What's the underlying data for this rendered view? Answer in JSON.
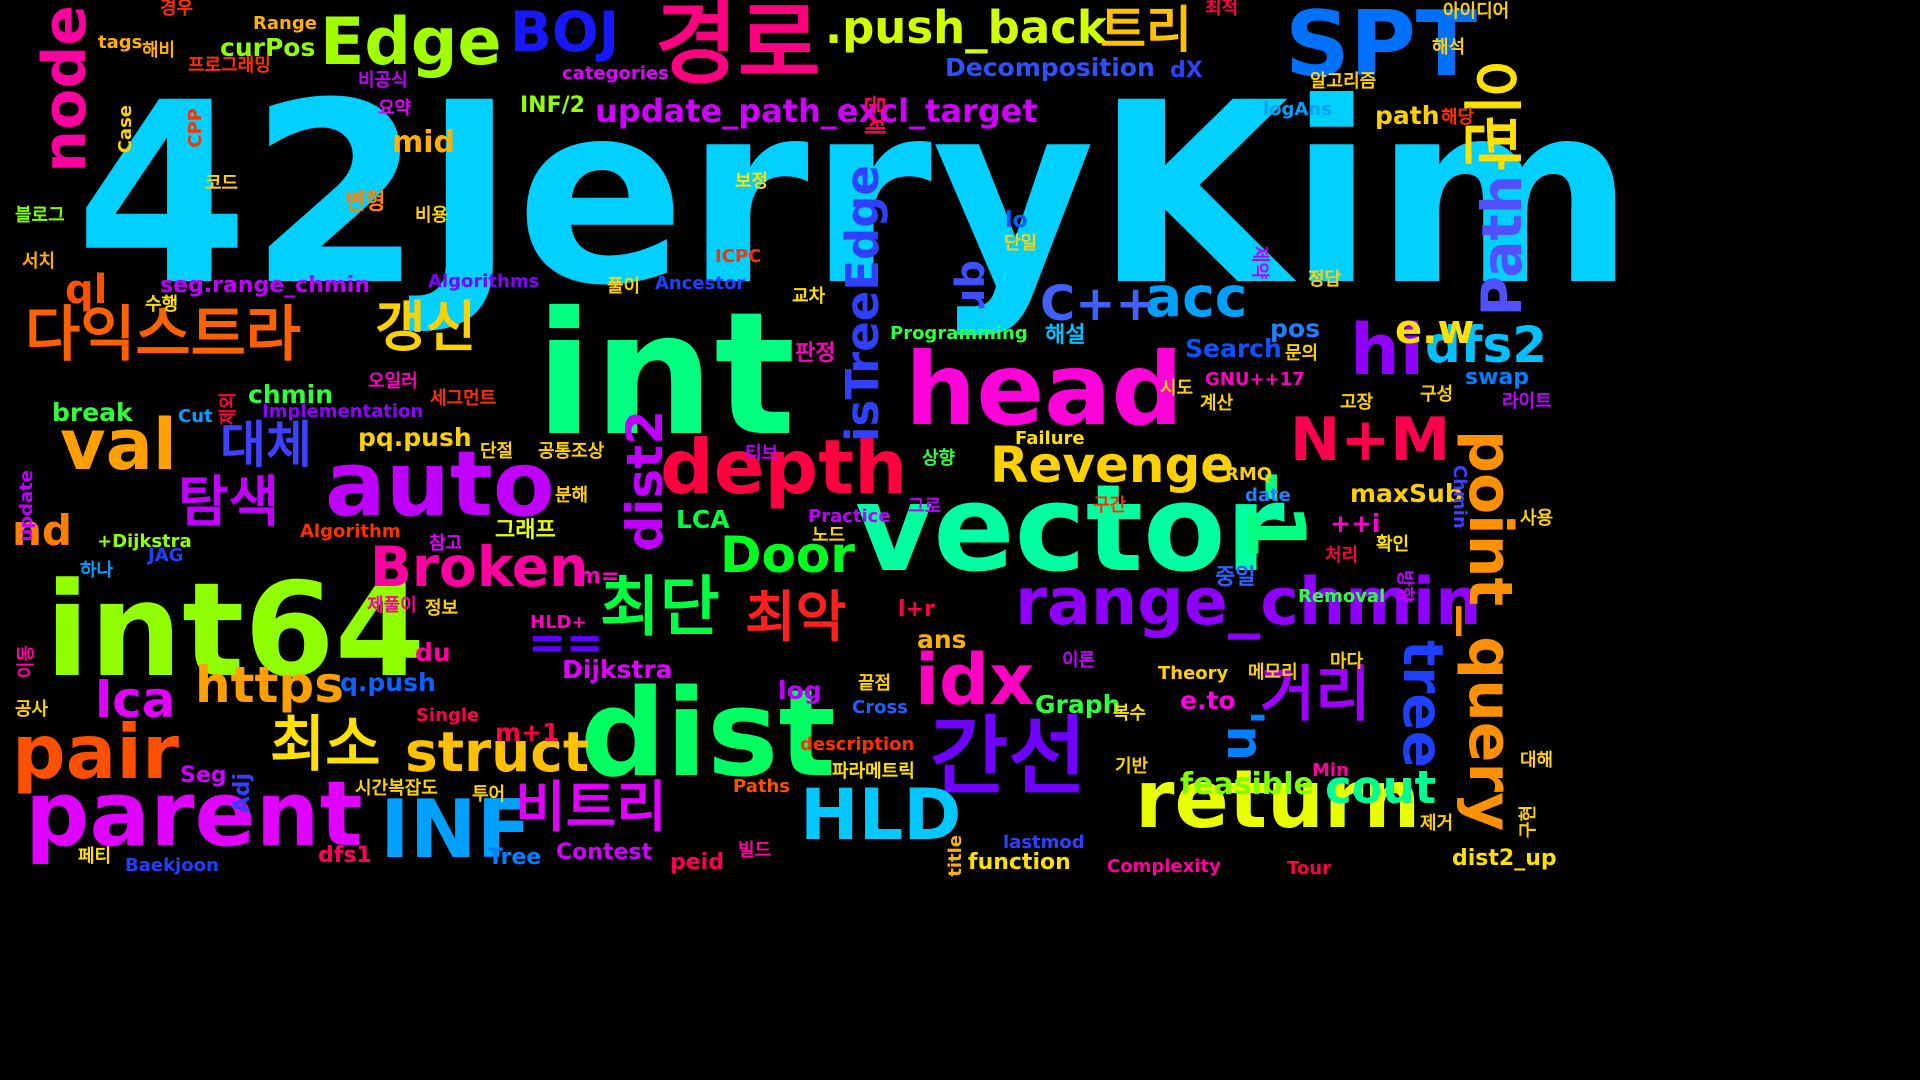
{
  "words": [
    {
      "text": "42JerryKim",
      "color": "#00d0ff"
    },
    {
      "text": "int",
      "color": "#00ff80"
    },
    {
      "text": "vector",
      "color": "#00ffa0"
    },
    {
      "text": "int64",
      "color": "#90ff00"
    },
    {
      "text": "dist",
      "color": "#00ff60"
    },
    {
      "text": "head",
      "color": "#ff00d8"
    },
    {
      "text": "auto",
      "color": "#c000ff"
    },
    {
      "text": "parent",
      "color": "#e000ff"
    },
    {
      "text": "경로",
      "color": "#ff0080"
    },
    {
      "text": "SPT",
      "color": "#0070ff"
    },
    {
      "text": "INF",
      "color": "#00a0ff"
    },
    {
      "text": "return",
      "color": "#e8ff00"
    },
    {
      "text": "pair",
      "color": "#ff5000"
    },
    {
      "text": "간선",
      "color": "#7000ff"
    },
    {
      "text": "val",
      "color": "#ffa000"
    },
    {
      "text": "depth",
      "color": "#ff0040"
    },
    {
      "text": "HLD",
      "color": "#00c8ff"
    },
    {
      "text": "range_chmin",
      "color": "#9000ff"
    },
    {
      "text": "Edge",
      "color": "#a0ff00"
    },
    {
      "text": "다익스트라",
      "color": "#ff6000"
    },
    {
      "text": "idx",
      "color": "#ff00c0"
    },
    {
      "text": "point_query",
      "color": "#ff9000"
    },
    {
      "text": "node",
      "color": "#ff00a0"
    },
    {
      "text": "거리",
      "color": "#a000ff"
    },
    {
      "text": "tree",
      "color": "#2040ff"
    },
    {
      "text": "최단",
      "color": "#00ff40"
    },
    {
      "text": "-1",
      "color": "#00ff80"
    },
    {
      "text": "이판",
      "color": "#ffe000"
    },
    {
      "text": "N+M",
      "color": "#ff0050"
    },
    {
      "text": "Revenge",
      "color": "#ffd000"
    },
    {
      "text": "BOJ",
      "color": "#1818ff"
    },
    {
      "text": "hi",
      "color": "#9000ff"
    },
    {
      "text": "dist2",
      "color": "#c000ff"
    },
    {
      "text": "Broken",
      "color": "#ff00a0"
    },
    {
      "text": "struct",
      "color": "#ffc000"
    },
    {
      "text": "최소",
      "color": "#ffe000"
    },
    {
      "text": "비트리",
      "color": "#e000ff"
    },
    {
      "text": "Path",
      "color": "#5050ff"
    },
    {
      "text": "isTreeEdge",
      "color": "#3040ff"
    },
    {
      "text": "acc",
      "color": "#00a0ff"
    },
    {
      "text": "dfs2",
      "color": "#00c0ff"
    },
    {
      "text": ".push_back",
      "color": "#d0ff00"
    },
    {
      "text": "트리",
      "color": "#ffc000"
    },
    {
      "text": "https",
      "color": "#ffa000"
    },
    {
      "text": "최악",
      "color": "#ff2020"
    },
    {
      "text": "Door",
      "color": "#00ff20"
    },
    {
      "text": "탐색",
      "color": "#c000ff"
    },
    {
      "text": "lca",
      "color": "#e000ff"
    },
    {
      "text": "cout",
      "color": "#00ff90"
    },
    {
      "text": "갱신",
      "color": "#ffd000"
    },
    {
      "text": "대체",
      "color": "#4040ff"
    },
    {
      "text": "C++",
      "color": "#4060ff"
    },
    {
      "text": "e.w",
      "color": "#ffe000"
    },
    {
      "text": "nd",
      "color": "#ff8000"
    },
    {
      "text": "'n",
      "color": "#0080ff"
    },
    {
      "text": "==",
      "color": "#6000ff"
    },
    {
      "text": "ql",
      "color": "#ff5000"
    },
    {
      "text": "qr",
      "color": "#4050ff"
    },
    {
      "text": "update_path_excl_target",
      "color": "#d000ff"
    },
    {
      "text": "feasible",
      "color": "#80ff00"
    },
    {
      "text": "Decomposition",
      "color": "#3050ff"
    },
    {
      "text": "curPos",
      "color": "#90ff00"
    },
    {
      "text": "mid",
      "color": "#ffb000"
    },
    {
      "text": "seg.range_chmin",
      "color": "#c000ff"
    },
    {
      "text": "chmin",
      "color": "#30ff40"
    },
    {
      "text": "break",
      "color": "#30ff40"
    },
    {
      "text": "pq.push",
      "color": "#ffd000"
    },
    {
      "text": "LCA",
      "color": "#00ff40"
    },
    {
      "text": "ans",
      "color": "#ffb000"
    },
    {
      "text": "du",
      "color": "#ff00a0"
    },
    {
      "text": "q.push",
      "color": "#1060ff"
    },
    {
      "text": "Dijkstra",
      "color": "#e000ff"
    },
    {
      "text": "m+1",
      "color": "#ff0040"
    },
    {
      "text": "log",
      "color": "#c000ff"
    },
    {
      "text": "Graph",
      "color": "#30ff40"
    },
    {
      "text": "e.to",
      "color": "#ff00e0"
    },
    {
      "text": "path",
      "color": "#ffd000"
    },
    {
      "text": "pos",
      "color": "#2080ff"
    },
    {
      "text": "Search",
      "color": "#1050ff"
    },
    {
      "text": "swap",
      "color": "#0080ff"
    },
    {
      "text": "maxSub",
      "color": "#ffd000"
    },
    {
      "text": "++i",
      "color": "#ff00d0"
    },
    {
      "text": "dfs1",
      "color": "#ff0060"
    },
    {
      "text": "Contest",
      "color": "#d000ff"
    },
    {
      "text": "Tree",
      "color": "#0080ff"
    },
    {
      "text": "peid",
      "color": "#ff0050"
    },
    {
      "text": "function",
      "color": "#ffe000"
    },
    {
      "text": "dist2_up",
      "color": "#ffe000"
    },
    {
      "text": "Seg",
      "color": "#d000ff"
    },
    {
      "text": "Adj",
      "color": "#3040ff"
    },
    {
      "text": "l+r",
      "color": "#ff0040"
    },
    {
      "text": "m=",
      "color": "#ff00c0"
    },
    {
      "text": "lo",
      "color": "#0060ff"
    },
    {
      "text": "dX",
      "color": "#3040ff"
    },
    {
      "text": "INF/2",
      "color": "#90ff00"
    },
    {
      "text": "update",
      "color": "#c000ff"
    },
    {
      "text": "중일",
      "color": "#3060ff"
    },
    {
      "text": "해설",
      "color": "#00c0ff"
    },
    {
      "text": "판정",
      "color": "#ff00c0"
    },
    {
      "text": "변형",
      "color": "#ff8000"
    },
    {
      "text": "문제",
      "color": "#ff0060"
    },
    {
      "text": "그래프",
      "color": "#e8ff00"
    },
    {
      "text": "Practice",
      "color": "#c000ff"
    },
    {
      "text": "Implementation",
      "color": "#9000ff"
    },
    {
      "text": "Algorithms",
      "color": "#8000ff"
    },
    {
      "text": "Programming",
      "color": "#30ff40"
    },
    {
      "text": "Ancestor",
      "color": "#2040ff"
    },
    {
      "text": "ICPC",
      "color": "#ff3000"
    },
    {
      "text": "Algorithm",
      "color": "#ff3000"
    },
    {
      "text": "Failure",
      "color": "#ffe000"
    },
    {
      "text": "GNU++17",
      "color": "#ff00c0"
    },
    {
      "text": "logAns",
      "color": "#00a0ff"
    },
    {
      "text": "categories",
      "color": "#e000ff"
    },
    {
      "text": "Range",
      "color": "#ffb000"
    },
    {
      "text": "tags",
      "color": "#ffb000"
    },
    {
      "text": "+Dijkstra",
      "color": "#90ff00"
    },
    {
      "text": "JAG",
      "color": "#2040ff"
    },
    {
      "text": "HLD+",
      "color": "#ff00c0"
    },
    {
      "text": "Single",
      "color": "#ff0050"
    },
    {
      "text": "Removal",
      "color": "#30ff40"
    },
    {
      "text": "Theory",
      "color": "#ffd000"
    },
    {
      "text": "Cross",
      "color": "#2060ff"
    },
    {
      "text": "description",
      "color": "#ff3000"
    },
    {
      "text": "Min",
      "color": "#ff00a0"
    },
    {
      "text": "Paths",
      "color": "#ff5000"
    },
    {
      "text": "lastmod",
      "color": "#3040ff"
    },
    {
      "text": "Complexity",
      "color": "#ff00a0"
    },
    {
      "text": "Tour",
      "color": "#ff0040"
    },
    {
      "text": "date",
      "color": "#2080ff"
    },
    {
      "text": "Chmin",
      "color": "#4040ff"
    },
    {
      "text": "RMQ",
      "color": "#ffd000"
    },
    {
      "text": "Cut",
      "color": "#00a0ff"
    },
    {
      "text": "Baekjoon",
      "color": "#2040ff"
    },
    {
      "text": "title",
      "color": "#ffb000"
    },
    {
      "text": "Case",
      "color": "#ffd000"
    },
    {
      "text": "CPP",
      "color": "#ff3000"
    },
    {
      "text": "경우",
      "color": "#ff3000"
    },
    {
      "text": "최적",
      "color": "#ff0040"
    },
    {
      "text": "해비",
      "color": "#ffb000"
    },
    {
      "text": "프로그래밍",
      "color": "#ff3000"
    },
    {
      "text": "비공식",
      "color": "#c000ff"
    },
    {
      "text": "요약",
      "color": "#e000ff"
    },
    {
      "text": "코드",
      "color": "#ffd000"
    },
    {
      "text": "보정",
      "color": "#ffe000"
    },
    {
      "text": "블로그",
      "color": "#80ff00"
    },
    {
      "text": "비용",
      "color": "#ffd000"
    },
    {
      "text": "서치",
      "color": "#ffb000"
    },
    {
      "text": "단일",
      "color": "#ffd000"
    },
    {
      "text": "수행",
      "color": "#ffe000"
    },
    {
      "text": "풀이",
      "color": "#ffd000"
    },
    {
      "text": "교차",
      "color": "#ffe000"
    },
    {
      "text": "오일러",
      "color": "#ff00c0"
    },
    {
      "text": "세그먼트",
      "color": "#ff3000"
    },
    {
      "text": "단절",
      "color": "#ffd000"
    },
    {
      "text": "공통조상",
      "color": "#ffd000"
    },
    {
      "text": "티브",
      "color": "#c000ff"
    },
    {
      "text": "상향",
      "color": "#30ff40"
    },
    {
      "text": "분해",
      "color": "#ffd000"
    },
    {
      "text": "그로",
      "color": "#c000ff"
    },
    {
      "text": "노드",
      "color": "#ffd000"
    },
    {
      "text": "참고",
      "color": "#e000ff"
    },
    {
      "text": "하나",
      "color": "#00a0ff"
    },
    {
      "text": "제풀이",
      "color": "#ff00a0"
    },
    {
      "text": "정보",
      "color": "#ffd000"
    },
    {
      "text": "이동",
      "color": "#ff00a0"
    },
    {
      "text": "공사",
      "color": "#ffd000"
    },
    {
      "text": "끝점",
      "color": "#ffd000"
    },
    {
      "text": "파라메트릭",
      "color": "#ffe000"
    },
    {
      "text": "시간복잡도",
      "color": "#ffd000"
    },
    {
      "text": "투어",
      "color": "#ffd000"
    },
    {
      "text": "빌드",
      "color": "#ff00a0"
    },
    {
      "text": "페티",
      "color": "#ffe000"
    },
    {
      "text": "복수",
      "color": "#ffe000"
    },
    {
      "text": "기반",
      "color": "#ffd000"
    },
    {
      "text": "메모리",
      "color": "#ffd000"
    },
    {
      "text": "마다",
      "color": "#ffd000"
    },
    {
      "text": "이론",
      "color": "#c000ff"
    },
    {
      "text": "구간",
      "color": "#ff3000"
    },
    {
      "text": "처리",
      "color": "#ff0040"
    },
    {
      "text": "확인",
      "color": "#ffe000"
    },
    {
      "text": "사용",
      "color": "#ffd000"
    },
    {
      "text": "대해",
      "color": "#ffd000"
    },
    {
      "text": "제거",
      "color": "#ffd000"
    },
    {
      "text": "구현",
      "color": "#ffd000"
    },
    {
      "text": "방향",
      "color": "#c000ff"
    },
    {
      "text": "구성",
      "color": "#ffd000"
    },
    {
      "text": "라이트",
      "color": "#c000ff"
    },
    {
      "text": "고장",
      "color": "#ffd000"
    },
    {
      "text": "계산",
      "color": "#ffd000"
    },
    {
      "text": "시도",
      "color": "#ffd000"
    },
    {
      "text": "문의",
      "color": "#ffd000"
    },
    {
      "text": "정답",
      "color": "#ffd000"
    },
    {
      "text": "제약",
      "color": "#c000ff"
    },
    {
      "text": "해석",
      "color": "#ffd000"
    },
    {
      "text": "해당",
      "color": "#ff3000"
    },
    {
      "text": "알고리즘",
      "color": "#ffd000"
    },
    {
      "text": "아이디어",
      "color": "#ffd000"
    },
    {
      "text": "제외",
      "color": "#ff0040"
    }
  ]
}
